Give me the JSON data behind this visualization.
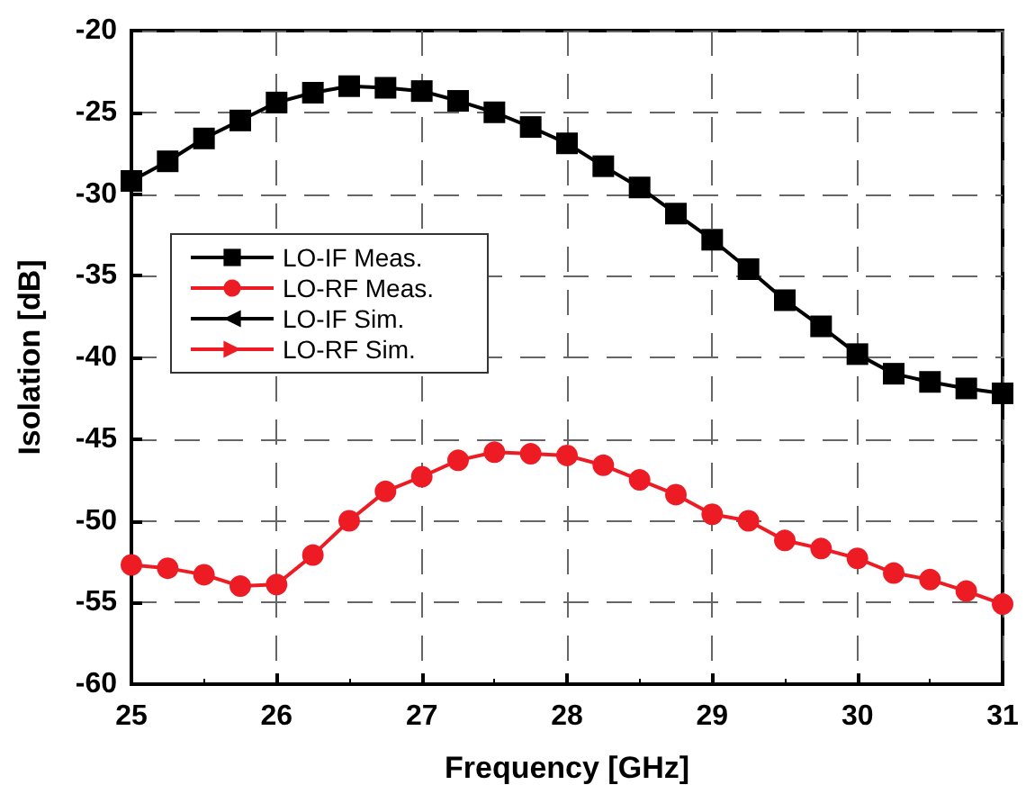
{
  "chart_data": {
    "type": "line",
    "xlabel": "Frequency [GHz]",
    "ylabel": "Isolation [dB]",
    "x": [
      25,
      25.25,
      25.5,
      25.75,
      26,
      26.25,
      26.5,
      26.75,
      27,
      27.25,
      27.5,
      27.75,
      28,
      28.25,
      28.5,
      28.75,
      29,
      29.25,
      29.5,
      29.75,
      30,
      30.25,
      30.5,
      30.75,
      31
    ],
    "series": [
      {
        "name": "LO-IF Meas.",
        "color": "#000000",
        "marker": "square",
        "values": [
          -29.2,
          -28,
          -26.6,
          -25.5,
          -24.4,
          -23.8,
          -23.4,
          -23.5,
          -23.7,
          -24.3,
          -25.0,
          -25.9,
          -26.9,
          -28.3,
          -29.6,
          -31.2,
          -32.8,
          -34.6,
          -36.5,
          -38.1,
          -39.8,
          -41.0,
          -41.5,
          -41.9,
          -42.2
        ]
      },
      {
        "name": "LO-RF Meas.",
        "color": "#ed1c24",
        "marker": "circle",
        "values": [
          -52.7,
          -52.9,
          -53.3,
          -54.0,
          -53.9,
          -52.1,
          -50.0,
          -48.2,
          -47.3,
          -46.3,
          -45.8,
          -45.9,
          -46.0,
          -46.6,
          -47.5,
          -48.4,
          -49.6,
          -50.0,
          -51.2,
          -51.7,
          -52.3,
          -53.2,
          -53.6,
          -54.3,
          -55.1
        ]
      },
      {
        "name": "LO-IF Sim.",
        "color": "#000000",
        "marker": "triangle-left",
        "values": [
          null,
          null,
          null,
          null,
          null,
          null,
          null,
          null,
          null,
          null,
          null,
          null,
          null,
          null,
          null,
          null,
          null,
          null,
          null,
          null,
          null,
          null,
          null,
          null,
          null
        ]
      },
      {
        "name": "LO-RF Sim.",
        "color": "#ed1c24",
        "marker": "triangle-right",
        "values": [
          null,
          null,
          null,
          null,
          null,
          null,
          null,
          null,
          null,
          null,
          null,
          null,
          null,
          null,
          null,
          null,
          null,
          null,
          null,
          null,
          null,
          null,
          null,
          null,
          null
        ]
      }
    ],
    "xlim": [
      25,
      31
    ],
    "xticks": [
      25,
      26,
      27,
      28,
      29,
      30,
      31
    ],
    "ylim": [
      -60,
      -20
    ],
    "yticks": [
      -60,
      -55,
      -50,
      -45,
      -40,
      -35,
      -30,
      -25,
      -20
    ],
    "grid": true,
    "legend": "left"
  }
}
